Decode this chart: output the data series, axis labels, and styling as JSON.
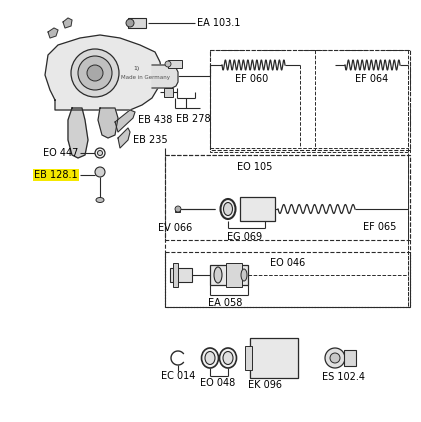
{
  "bg_color": "#ffffff",
  "labels": {
    "EA_103_1": "EA 103.1",
    "EF_060": "EF 060",
    "EF_064": "EF 064",
    "EB_278": "EB 278",
    "EO_447": "EO 447",
    "EB_438": "EB 438",
    "EB_235": "EB 235",
    "EB_128_1": "EB 128.1",
    "EO_105": "EO 105",
    "EV_066": "EV 066",
    "EG_069": "EG 069",
    "EF_065": "EF 065",
    "EO_046": "EO 046",
    "EA_058": "EA 058",
    "EC_014": "EC 014",
    "EO_048": "EO 048",
    "EK_096": "EK 096",
    "ES_102_4": "ES 102.4"
  },
  "highlight_color": "#f5e800",
  "line_color": "#2a2a2a",
  "font_size": 7.0
}
